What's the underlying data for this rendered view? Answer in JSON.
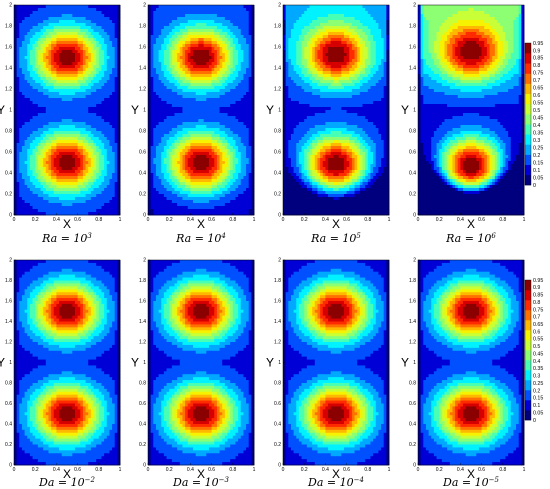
{
  "chart_data": {
    "type": "heatmap",
    "colormap": [
      "#00007f",
      "#0000d6",
      "#0050ff",
      "#00a8ff",
      "#00f2ff",
      "#48ffb6",
      "#8cff72",
      "#c8ff36",
      "#f6f200",
      "#ffb800",
      "#ff7000",
      "#ff2a00",
      "#d60000",
      "#8b0000"
    ],
    "levels": [
      "0",
      "0.05",
      "0.1",
      "0.15",
      "0.2",
      "0.25",
      "0.3",
      "0.35",
      "0.4",
      "0.45",
      "0.5",
      "0.55",
      "0.6",
      "0.65",
      "0.7",
      "0.75",
      "0.8",
      "0.85",
      "0.9",
      "0.95"
    ],
    "xlim": [
      0,
      1
    ],
    "ylim": [
      0,
      2
    ],
    "xticks": [
      "0",
      "0.2",
      "0.4",
      "0.6",
      "0.8",
      "1"
    ],
    "yticks": [
      "0",
      "0.2",
      "0.4",
      "0.6",
      "0.8",
      "1",
      "1.2",
      "1.4",
      "1.6",
      "1.8",
      "2"
    ],
    "xlabel": "X",
    "ylabel": "Y",
    "rows": [
      {
        "panels": [
          {
            "caption_param": "Ra",
            "caption_value": "10",
            "caption_exp": "3",
            "convection": 0.0
          },
          {
            "caption_param": "Ra",
            "caption_value": "10",
            "caption_exp": "4",
            "convection": 0.05
          },
          {
            "caption_param": "Ra",
            "caption_value": "10",
            "caption_exp": "5",
            "convection": 0.45
          },
          {
            "caption_param": "Ra",
            "caption_value": "10",
            "caption_exp": "6",
            "convection": 1.0
          }
        ]
      },
      {
        "panels": [
          {
            "caption_param": "Da",
            "caption_value": "10",
            "caption_exp": "−2",
            "convection": 0.0
          },
          {
            "caption_param": "Da",
            "caption_value": "10",
            "caption_exp": "−3",
            "convection": 0.0
          },
          {
            "caption_param": "Da",
            "caption_value": "10",
            "caption_exp": "−4",
            "convection": 0.0
          },
          {
            "caption_param": "Da",
            "caption_value": "10",
            "caption_exp": "−5",
            "convection": 0.0
          }
        ]
      }
    ]
  }
}
